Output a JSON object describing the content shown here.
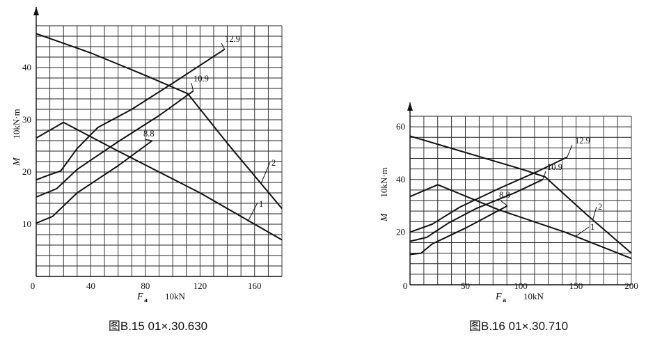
{
  "chart_data": [
    {
      "type": "line",
      "caption": "图B.15   01×.30.630",
      "xlabel": "F",
      "xlabel_sub": "a",
      "xunit": "10kN",
      "ylabel": "M",
      "yunit": "10kN·m",
      "xlim": [
        0,
        180
      ],
      "ylim": [
        0,
        48
      ],
      "xticks": [
        "0",
        "40",
        "80",
        "120",
        "160"
      ],
      "xtick_values": [
        0,
        40,
        80,
        120,
        160
      ],
      "yticks": [
        "10",
        "20",
        "30",
        "40"
      ],
      "ytick_values": [
        10,
        20,
        30,
        40
      ],
      "grid": true,
      "series": [
        {
          "name": "12.9",
          "x": [
            0,
            10,
            18,
            30,
            45,
            70,
            100,
            138
          ],
          "y": [
            18.5,
            19.5,
            20.2,
            24.5,
            28.5,
            32,
            37,
            43.5
          ]
        },
        {
          "name": "10.9",
          "x": [
            0,
            15,
            30,
            60,
            90,
            115
          ],
          "y": [
            15.2,
            16.8,
            20.5,
            25.8,
            30.8,
            35.5
          ]
        },
        {
          "name": "8.8",
          "x": [
            0,
            12,
            30,
            60,
            85
          ],
          "y": [
            10.2,
            11.5,
            16,
            21.2,
            26
          ]
        },
        {
          "name": "1",
          "x": [
            0,
            20,
            60,
            120,
            180
          ],
          "y": [
            26.5,
            29.5,
            24,
            16,
            7
          ]
        },
        {
          "name": "2",
          "x": [
            0,
            40,
            80,
            111,
            140,
            180
          ],
          "y": [
            46.5,
            42.8,
            38.5,
            35,
            25.5,
            13
          ]
        }
      ]
    },
    {
      "type": "line",
      "caption": "图B.16   01×.30.710",
      "xlabel": "F",
      "xlabel_sub": "a",
      "xunit": "10kN",
      "ylabel": "M",
      "yunit": "10kN·m",
      "xlim": [
        0,
        200
      ],
      "ylim": [
        0,
        64
      ],
      "xticks": [
        "0",
        "50",
        "100",
        "150",
        "200"
      ],
      "xtick_values": [
        0,
        50,
        100,
        150,
        200
      ],
      "yticks": [
        "20",
        "40",
        "60"
      ],
      "ytick_values": [
        20,
        40,
        60
      ],
      "grid": true,
      "series": [
        {
          "name": "12.9",
          "x": [
            0,
            20,
            45,
            80,
            115,
            142
          ],
          "y": [
            20,
            23,
            29.5,
            36.5,
            43,
            48.5
          ]
        },
        {
          "name": "10.9",
          "x": [
            0,
            15,
            35,
            60,
            95,
            120
          ],
          "y": [
            16.5,
            18,
            23.5,
            29,
            35,
            40
          ]
        },
        {
          "name": "8.8",
          "x": [
            0,
            10,
            20,
            50,
            88
          ],
          "y": [
            11.5,
            12,
            15.5,
            21.5,
            30
          ]
        },
        {
          "name": "1",
          "x": [
            0,
            25,
            80,
            140,
            200
          ],
          "y": [
            33.5,
            38,
            28.5,
            20,
            10
          ]
        },
        {
          "name": "2",
          "x": [
            0,
            60,
            100,
            122,
            160,
            200
          ],
          "y": [
            56.5,
            49,
            44,
            41,
            26.5,
            12
          ]
        }
      ]
    }
  ]
}
